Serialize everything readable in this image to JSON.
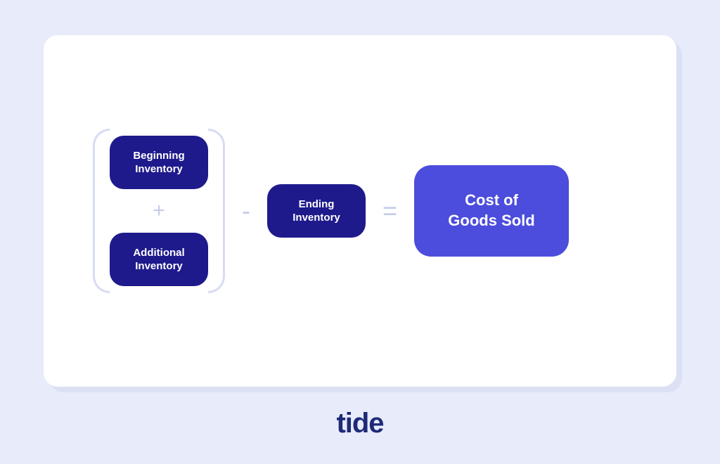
{
  "diagram": {
    "type": "formula-flowchart",
    "background_color": "#e8ebf9",
    "card_background": "#ffffff",
    "card_shadow_color": "#dce0f4",
    "bracket_color": "#d8dcf2",
    "operator_color": "#c5cce8",
    "box_dark_color": "#1e1a8c",
    "box_light_color": "#4c4ddc",
    "text_color": "#ffffff",
    "nodes": {
      "beginning": {
        "label_line1": "Beginning",
        "label_line2": "Inventory"
      },
      "additional": {
        "label_line1": "Additional",
        "label_line2": "Inventory"
      },
      "ending": {
        "label_line1": "Ending",
        "label_line2": "Inventory"
      },
      "result": {
        "label_line1": "Cost of",
        "label_line2": "Goods Sold"
      }
    },
    "operators": {
      "plus": "+",
      "minus": "-",
      "equals": "="
    }
  },
  "logo": {
    "text": "tide",
    "color": "#1e2a78"
  }
}
